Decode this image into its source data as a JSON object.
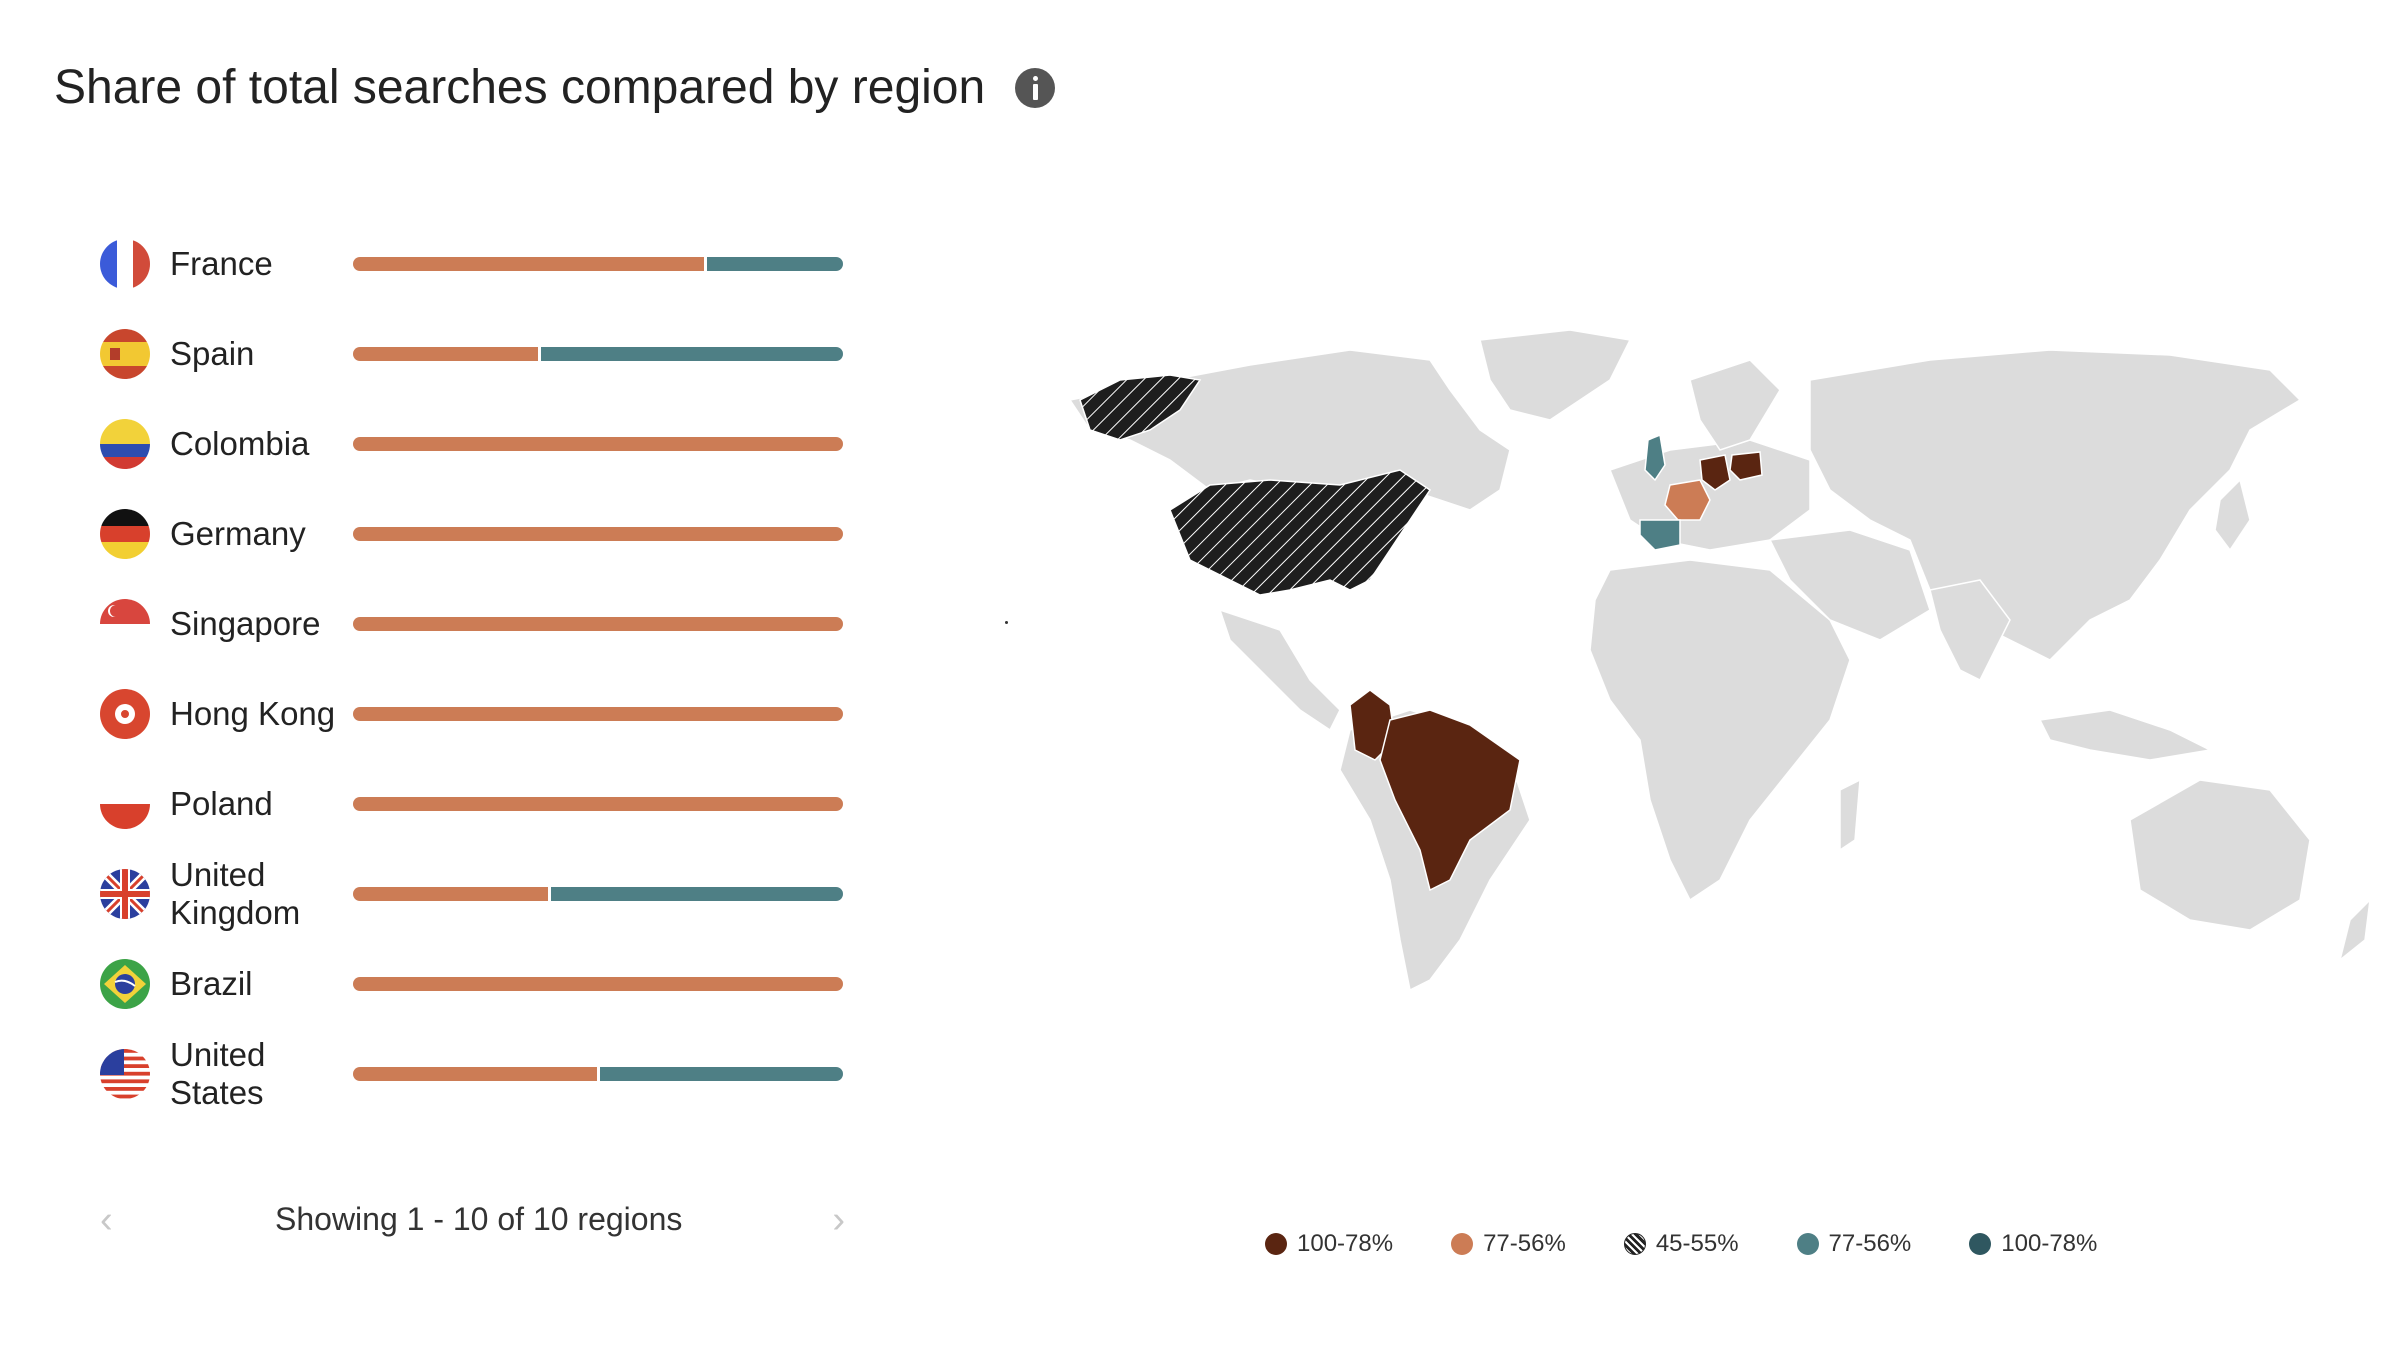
{
  "title": "Share of total searches compared by region",
  "info_icon": "info-icon",
  "colors": {
    "dark_brown": "#5a2511",
    "orange": "#cc7c55",
    "hatched": "#222222",
    "teal": "#4e7f85",
    "dark_teal": "#2f5760",
    "land": "#dcdcdc"
  },
  "regions": [
    {
      "name": "France",
      "share_a": 0.72,
      "share_b": 0.28,
      "flag": "france-flag-icon"
    },
    {
      "name": "Spain",
      "share_a": 0.38,
      "share_b": 0.62,
      "flag": "spain-flag-icon"
    },
    {
      "name": "Colombia",
      "share_a": 1.0,
      "share_b": 0,
      "flag": "colombia-flag-icon"
    },
    {
      "name": "Germany",
      "share_a": 1.0,
      "share_b": 0,
      "flag": "germany-flag-icon"
    },
    {
      "name": "Singapore",
      "share_a": 1.0,
      "share_b": 0,
      "flag": "singapore-flag-icon"
    },
    {
      "name": "Hong Kong",
      "share_a": 1.0,
      "share_b": 0,
      "flag": "hong-kong-flag-icon"
    },
    {
      "name": "Poland",
      "share_a": 1.0,
      "share_b": 0,
      "flag": "poland-flag-icon"
    },
    {
      "name": "United Kingdom",
      "share_a": 0.4,
      "share_b": 0.6,
      "flag": "uk-flag-icon"
    },
    {
      "name": "Brazil",
      "share_a": 1.0,
      "share_b": 0,
      "flag": "brazil-flag-icon"
    },
    {
      "name": "United States",
      "share_a": 0.5,
      "share_b": 0.5,
      "flag": "us-flag-icon"
    }
  ],
  "pagination": {
    "status": "Showing 1 - 10 of 10 regions",
    "prev_icon": "chevron-left-icon",
    "next_icon": "chevron-right-icon"
  },
  "legend": [
    {
      "label": "100-78%",
      "color": "#5a2511",
      "pattern": "solid"
    },
    {
      "label": "77-56%",
      "color": "#cc7c55",
      "pattern": "solid"
    },
    {
      "label": "45-55%",
      "color": "#222222",
      "pattern": "hatched"
    },
    {
      "label": "77-56%",
      "color": "#4e7f85",
      "pattern": "solid"
    },
    {
      "label": "100-78%",
      "color": "#2f5760",
      "pattern": "solid"
    }
  ],
  "map": {
    "highlighted": [
      {
        "country": "United States",
        "band": "45-55%"
      },
      {
        "country": "Brazil",
        "band": "100-78%"
      },
      {
        "country": "Colombia",
        "band": "100-78%"
      },
      {
        "country": "Germany",
        "band": "100-78%"
      },
      {
        "country": "Poland",
        "band": "100-78%"
      },
      {
        "country": "France",
        "band": "77-56%"
      },
      {
        "country": "Spain",
        "band": "77-56%"
      },
      {
        "country": "United Kingdom",
        "band": "77-56%"
      }
    ]
  }
}
